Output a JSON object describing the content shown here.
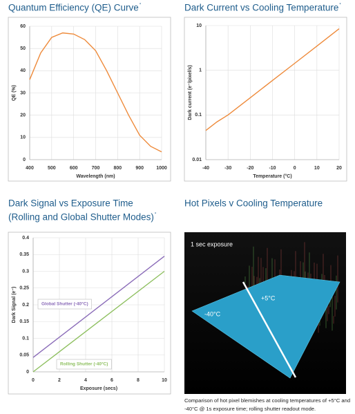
{
  "chart_data": [
    {
      "type": "line",
      "title": "Quantum Efficiency (QE) Curve",
      "title_note": "*",
      "x_label": "Wavelength (nm)",
      "y_label": "QE (%)",
      "x": [
        400,
        450,
        500,
        550,
        600,
        650,
        700,
        750,
        800,
        850,
        900,
        950,
        1000
      ],
      "series": [
        {
          "name": "QE",
          "color": "#ee8a3a",
          "values": [
            36,
            48,
            55,
            57,
            56.5,
            54,
            49,
            40,
            30,
            20,
            11,
            6,
            3.5
          ]
        }
      ],
      "xlim": [
        400,
        1000
      ],
      "xticks": [
        400,
        500,
        600,
        700,
        800,
        900,
        1000
      ],
      "ylim": [
        0,
        60
      ],
      "yticks": [
        0,
        10,
        20,
        30,
        40,
        50,
        60
      ],
      "grid": true,
      "legend": false
    },
    {
      "type": "line",
      "title": "Dark Current vs Cooling Temperature",
      "title_note": "*",
      "x_label": "Temperature (°C)",
      "y_label": "Dark current (e⁻/pixel/s)",
      "x": [
        -40,
        -35,
        -30,
        -20,
        -10,
        0,
        10,
        20
      ],
      "series": [
        {
          "name": "Dark current",
          "color": "#ee8a3a",
          "values": [
            0.045,
            0.07,
            0.1,
            0.243,
            0.59,
            1.43,
            3.48,
            8.5
          ]
        }
      ],
      "xlim": [
        -40,
        20
      ],
      "xticks": [
        -40,
        -30,
        -20,
        -10,
        0,
        10,
        20
      ],
      "ylim": [
        0.01,
        10
      ],
      "yticks": [
        0.01,
        0.1,
        1,
        10
      ],
      "y_scale": "log",
      "grid": true,
      "legend": false
    },
    {
      "type": "line",
      "title_lines": [
        "Dark Signal vs Exposure Time",
        "(Rolling and Global Shutter Modes)"
      ],
      "title_note": "*",
      "x_label": "Exposure (secs)",
      "y_label": "Dark Signal (e⁻)",
      "x": [
        0,
        10
      ],
      "series": [
        {
          "name": "Global Shutter (-40°C)",
          "color": "#8a6bb8",
          "values": [
            0.043,
            0.345
          ]
        },
        {
          "name": "Rolling Shutter (-40°C)",
          "color": "#8dbf5e",
          "values": [
            0,
            0.3
          ]
        }
      ],
      "xlim": [
        0,
        10
      ],
      "xticks": [
        0,
        2,
        4,
        6,
        8,
        10
      ],
      "ylim": [
        0,
        0.4
      ],
      "yticks": [
        0,
        0.05,
        0.1,
        0.15,
        0.2,
        0.25,
        0.3,
        0.35,
        0.4
      ],
      "grid": true,
      "legend": true
    }
  ],
  "image_panel": {
    "title": "Hot Pixels v Cooling Temperature",
    "overlay": "1 sec exposure",
    "labels": [
      "+5°C",
      "-40°C"
    ],
    "caption": [
      "Comparison of hot pixel blemishes at cooling temperatures of +5°C and",
      "-40°C @ 1s exposure time; rolling shutter readout mode."
    ]
  }
}
